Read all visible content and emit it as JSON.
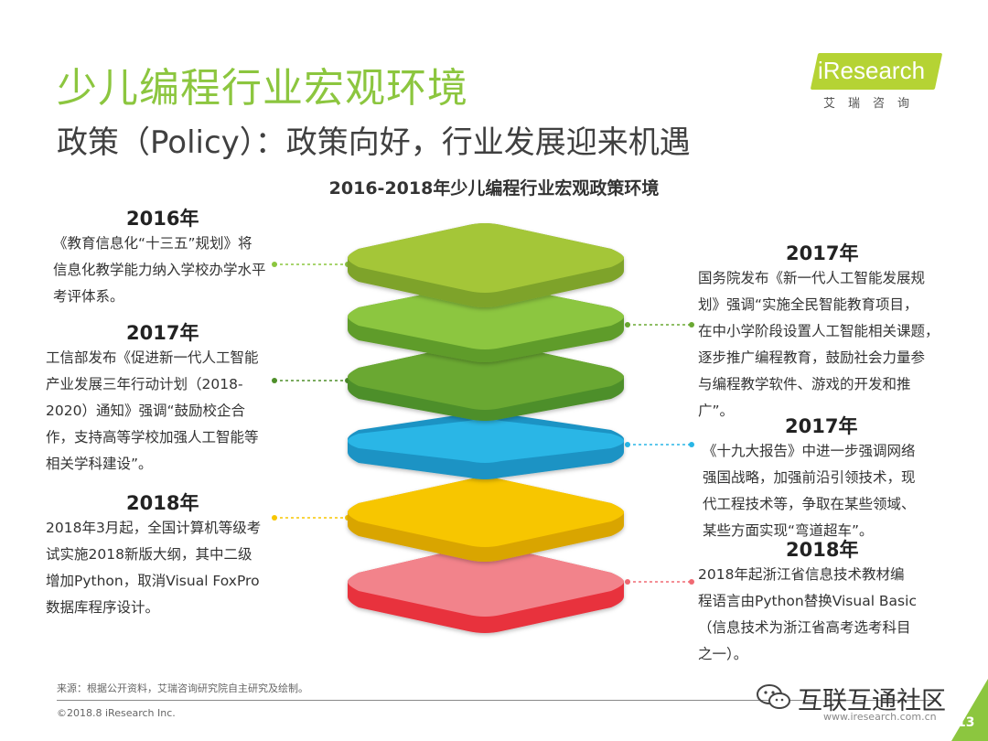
{
  "header": {
    "title": "少儿编程行业宏观环境",
    "subtitle": "政策（Policy）：政策向好，行业发展迎来机遇",
    "logo_text": "iResearch",
    "logo_sub": "艾瑞咨询"
  },
  "diagram": {
    "title": "2016-2018年少儿编程行业宏观政策环境",
    "colors": {
      "lime": "#a4c639",
      "green1": "#8cc63f",
      "green2": "#6aa832",
      "blue": "#29b6e6",
      "yellow": "#f7c600",
      "red": "#f06a73"
    },
    "left": [
      {
        "year": "2016年",
        "text": "《教育信息化“十三五”规划》将\n信息化教学能力纳入学校办学水平\n考评体系。"
      },
      {
        "year": "2017年",
        "text": "工信部发布《促进新一代人工智能\n产业发展三年行动计划（2018-\n2020）通知》强调“鼓励校企合\n作，支持高等学校加强人工智能等\n相关学科建设”。"
      },
      {
        "year": "2018年",
        "text": "2018年3月起，全国计算机等级考\n试实施2018新版大纲，其中二级\n增加Python，取消Visual FoxPro\n数据库程序设计。"
      }
    ],
    "right": [
      {
        "year": "2017年",
        "text": "国务院发布《新一代人工智能发展规\n划》强调“实施全民智能教育项目，\n在中小学阶段设置人工智能相关课题，\n逐步推广编程教育，鼓励社会力量参\n与编程教学软件、游戏的开发和推\n广”。"
      },
      {
        "year": "2017年",
        "text": "《十九大报告》中进一步强调网络\n强国战略，加强前沿引领技术，现\n代工程技术等，争取在某些领域、\n某些方面实现“弯道超车”。"
      },
      {
        "year": "2018年",
        "text": "2018年起浙江省信息技术教材编\n程语言由Python替换Visual Basic\n（信息技术为浙江省高考选考科目\n之一）。"
      }
    ]
  },
  "footer": {
    "source": "来源：根据公开资料，艾瑞咨询研究院自主研究及绘制。",
    "copyright": "©2018.8  iResearch Inc.",
    "website": "www.iresearch.com.cn",
    "watermark": "互联互通社区",
    "page": "13"
  }
}
